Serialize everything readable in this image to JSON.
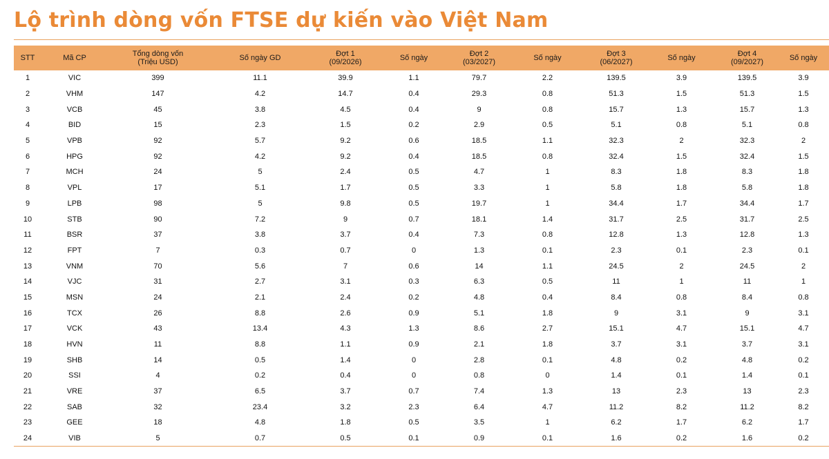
{
  "title": "Lộ trình dòng vốn FTSE dự kiến vào Việt Nam",
  "columns": [
    {
      "line1": "STT",
      "line2": ""
    },
    {
      "line1": "Mã CP",
      "line2": ""
    },
    {
      "line1": "Tổng dòng vốn",
      "line2": "(Triệu USD)"
    },
    {
      "line1": "Số ngày GD",
      "line2": ""
    },
    {
      "line1": "Đợt 1",
      "line2": "(09/2026)"
    },
    {
      "line1": "Số ngày",
      "line2": ""
    },
    {
      "line1": "Đợt 2",
      "line2": "(03/2027)"
    },
    {
      "line1": "Số ngày",
      "line2": ""
    },
    {
      "line1": "Đợt 3",
      "line2": "(06/2027)"
    },
    {
      "line1": "Số ngày",
      "line2": ""
    },
    {
      "line1": "Đợt 4",
      "line2": "(09/2027)"
    },
    {
      "line1": "Số ngày",
      "line2": ""
    }
  ],
  "rows": [
    [
      "1",
      "VIC",
      "399",
      "11.1",
      "39.9",
      "1.1",
      "79.7",
      "2.2",
      "139.5",
      "3.9",
      "139.5",
      "3.9"
    ],
    [
      "2",
      "VHM",
      "147",
      "4.2",
      "14.7",
      "0.4",
      "29.3",
      "0.8",
      "51.3",
      "1.5",
      "51.3",
      "1.5"
    ],
    [
      "3",
      "VCB",
      "45",
      "3.8",
      "4.5",
      "0.4",
      "9",
      "0.8",
      "15.7",
      "1.3",
      "15.7",
      "1.3"
    ],
    [
      "4",
      "BID",
      "15",
      "2.3",
      "1.5",
      "0.2",
      "2.9",
      "0.5",
      "5.1",
      "0.8",
      "5.1",
      "0.8"
    ],
    [
      "5",
      "VPB",
      "92",
      "5.7",
      "9.2",
      "0.6",
      "18.5",
      "1.1",
      "32.3",
      "2",
      "32.3",
      "2"
    ],
    [
      "6",
      "HPG",
      "92",
      "4.2",
      "9.2",
      "0.4",
      "18.5",
      "0.8",
      "32.4",
      "1.5",
      "32.4",
      "1.5"
    ],
    [
      "7",
      "MCH",
      "24",
      "5",
      "2.4",
      "0.5",
      "4.7",
      "1",
      "8.3",
      "1.8",
      "8.3",
      "1.8"
    ],
    [
      "8",
      "VPL",
      "17",
      "5.1",
      "1.7",
      "0.5",
      "3.3",
      "1",
      "5.8",
      "1.8",
      "5.8",
      "1.8"
    ],
    [
      "9",
      "LPB",
      "98",
      "5",
      "9.8",
      "0.5",
      "19.7",
      "1",
      "34.4",
      "1.7",
      "34.4",
      "1.7"
    ],
    [
      "10",
      "STB",
      "90",
      "7.2",
      "9",
      "0.7",
      "18.1",
      "1.4",
      "31.7",
      "2.5",
      "31.7",
      "2.5"
    ],
    [
      "11",
      "BSR",
      "37",
      "3.8",
      "3.7",
      "0.4",
      "7.3",
      "0.8",
      "12.8",
      "1.3",
      "12.8",
      "1.3"
    ],
    [
      "12",
      "FPT",
      "7",
      "0.3",
      "0.7",
      "0",
      "1.3",
      "0.1",
      "2.3",
      "0.1",
      "2.3",
      "0.1"
    ],
    [
      "13",
      "VNM",
      "70",
      "5.6",
      "7",
      "0.6",
      "14",
      "1.1",
      "24.5",
      "2",
      "24.5",
      "2"
    ],
    [
      "14",
      "VJC",
      "31",
      "2.7",
      "3.1",
      "0.3",
      "6.3",
      "0.5",
      "11",
      "1",
      "11",
      "1"
    ],
    [
      "15",
      "MSN",
      "24",
      "2.1",
      "2.4",
      "0.2",
      "4.8",
      "0.4",
      "8.4",
      "0.8",
      "8.4",
      "0.8"
    ],
    [
      "16",
      "TCX",
      "26",
      "8.8",
      "2.6",
      "0.9",
      "5.1",
      "1.8",
      "9",
      "3.1",
      "9",
      "3.1"
    ],
    [
      "17",
      "VCK",
      "43",
      "13.4",
      "4.3",
      "1.3",
      "8.6",
      "2.7",
      "15.1",
      "4.7",
      "15.1",
      "4.7"
    ],
    [
      "18",
      "HVN",
      "11",
      "8.8",
      "1.1",
      "0.9",
      "2.1",
      "1.8",
      "3.7",
      "3.1",
      "3.7",
      "3.1"
    ],
    [
      "19",
      "SHB",
      "14",
      "0.5",
      "1.4",
      "0",
      "2.8",
      "0.1",
      "4.8",
      "0.2",
      "4.8",
      "0.2"
    ],
    [
      "20",
      "SSI",
      "4",
      "0.2",
      "0.4",
      "0",
      "0.8",
      "0",
      "1.4",
      "0.1",
      "1.4",
      "0.1"
    ],
    [
      "21",
      "VRE",
      "37",
      "6.5",
      "3.7",
      "0.7",
      "7.4",
      "1.3",
      "13",
      "2.3",
      "13",
      "2.3"
    ],
    [
      "22",
      "SAB",
      "32",
      "23.4",
      "3.2",
      "2.3",
      "6.4",
      "4.7",
      "11.2",
      "8.2",
      "11.2",
      "8.2"
    ],
    [
      "23",
      "GEE",
      "18",
      "4.8",
      "1.8",
      "0.5",
      "3.5",
      "1",
      "6.2",
      "1.7",
      "6.2",
      "1.7"
    ],
    [
      "24",
      "VIB",
      "5",
      "0.7",
      "0.5",
      "0.1",
      "0.9",
      "0.1",
      "1.6",
      "0.2",
      "1.6",
      "0.2"
    ]
  ],
  "colors": {
    "accent": "#ea8a37",
    "header_bg": "#f0a866",
    "rule": "#e9a25f"
  }
}
